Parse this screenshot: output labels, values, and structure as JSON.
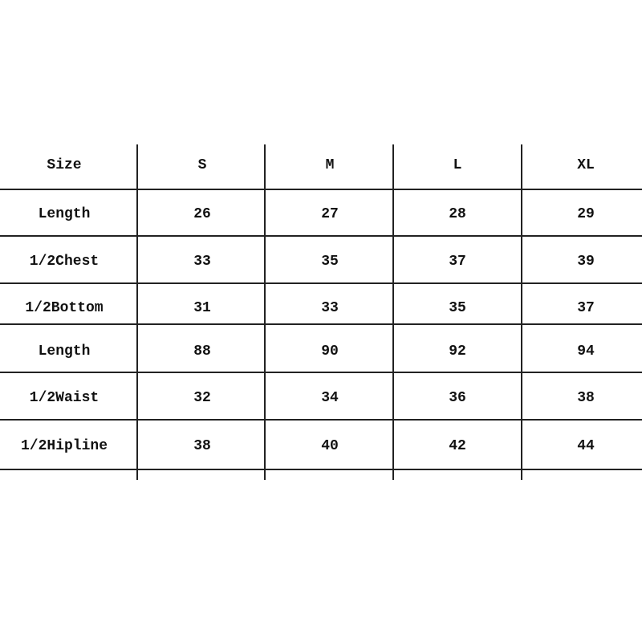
{
  "table": {
    "headers": [
      "Size",
      "S",
      "M",
      "L",
      "XL"
    ],
    "rows": [
      [
        "Length",
        "26",
        "27",
        "28",
        "29"
      ],
      [
        "1/2Chest",
        "33",
        "35",
        "37",
        "39"
      ],
      [
        "1/2Bottom",
        "31",
        "33",
        "35",
        "37"
      ],
      [
        "Length",
        "88",
        "90",
        "92",
        "94"
      ],
      [
        "1/2Waist",
        "32",
        "34",
        "36",
        "38"
      ],
      [
        "1/2Hipline",
        "38",
        "40",
        "42",
        "44"
      ]
    ]
  }
}
